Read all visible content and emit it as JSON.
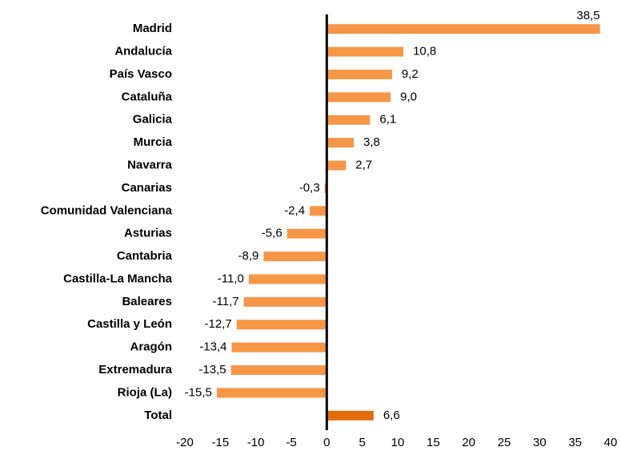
{
  "chart_data": {
    "type": "barh",
    "categories": [
      "Madrid",
      "Andalucía",
      "País Vasco",
      "Cataluña",
      "Galicia",
      "Murcia",
      "Navarra",
      "Canarias",
      "Comunidad Valenciana",
      "Asturias",
      "Cantabria",
      "Castilla-La Mancha",
      "Baleares",
      "Castilla y León",
      "Aragón",
      "Extremadura",
      "Rioja (La)",
      "Total"
    ],
    "values": [
      38.5,
      10.8,
      9.2,
      9.0,
      6.1,
      3.8,
      2.7,
      -0.3,
      -2.4,
      -5.6,
      -8.9,
      -11.0,
      -11.7,
      -12.7,
      -13.4,
      -13.5,
      -15.5,
      6.6
    ],
    "value_labels": [
      "38,5",
      "10,8",
      "9,2",
      "9,0",
      "6,1",
      "3,8",
      "2,7",
      "-0,3",
      "-2,4",
      "-5,6",
      "-8,9",
      "-11,0",
      "-11,7",
      "-12,7",
      "-13,4",
      "-13,5",
      "-15,5",
      "6,6"
    ],
    "colors": [
      "#f79646",
      "#f79646",
      "#f79646",
      "#f79646",
      "#f79646",
      "#f79646",
      "#f79646",
      "#f79646",
      "#f79646",
      "#f79646",
      "#f79646",
      "#f79646",
      "#f79646",
      "#f79646",
      "#f79646",
      "#f79646",
      "#f79646",
      "#e36c0a"
    ],
    "xlim": [
      -20,
      40
    ],
    "xticks": [
      -20,
      -15,
      -10,
      -5,
      0,
      5,
      10,
      15,
      20,
      25,
      30,
      35,
      40
    ],
    "grid": false
  }
}
